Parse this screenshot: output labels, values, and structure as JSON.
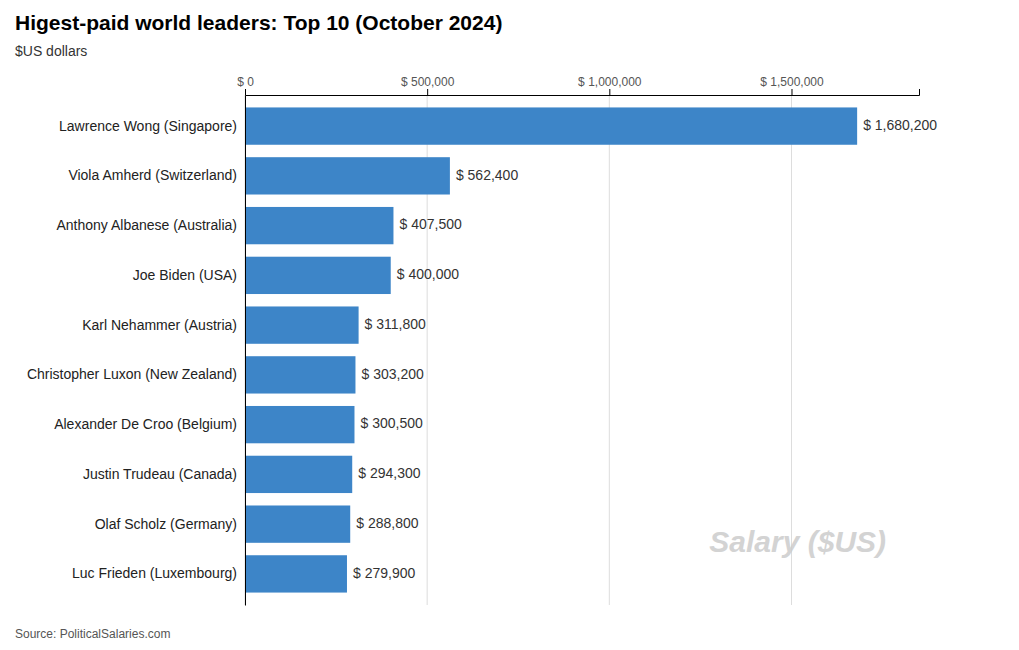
{
  "chart_data": {
    "type": "bar",
    "orientation": "horizontal",
    "title": "Higest-paid world leaders: Top 10 (October 2024)",
    "subtitle": "$US dollars",
    "source": "Source: PoliticalSalaries.com",
    "annotations": [
      "Salary ($US)"
    ],
    "categories": [
      "Lawrence Wong (Singapore)",
      "Viola Amherd (Switzerland)",
      "Anthony Albanese (Australia)",
      "Joe Biden (USA)",
      "Karl Nehammer (Austria)",
      "Christopher Luxon (New Zealand)",
      "Alexander De Croo (Belgium)",
      "Justin Trudeau (Canada)",
      "Olaf Scholz (Germany)",
      "Luc Frieden (Luxembourg)"
    ],
    "values": [
      1680200,
      562400,
      407500,
      400000,
      311800,
      303200,
      300500,
      294300,
      288800,
      279900
    ],
    "value_labels": [
      "$ 1,680,200",
      "$ 562,400",
      "$ 407,500",
      "$ 400,000",
      "$ 311,800",
      "$ 303,200",
      "$ 300,500",
      "$ 294,300",
      "$ 288,800",
      "$ 279,900"
    ],
    "data_labels": true,
    "color": "#3d85c8",
    "xlim": [
      0,
      1850000
    ],
    "xticks": [
      {
        "value": 0,
        "label": "$ 0"
      },
      {
        "value": 500000,
        "label": "$ 500,000"
      },
      {
        "value": 1000000,
        "label": "$ 1,000,000"
      },
      {
        "value": 1500000,
        "label": "$ 1,500,000"
      }
    ],
    "grid": true
  }
}
